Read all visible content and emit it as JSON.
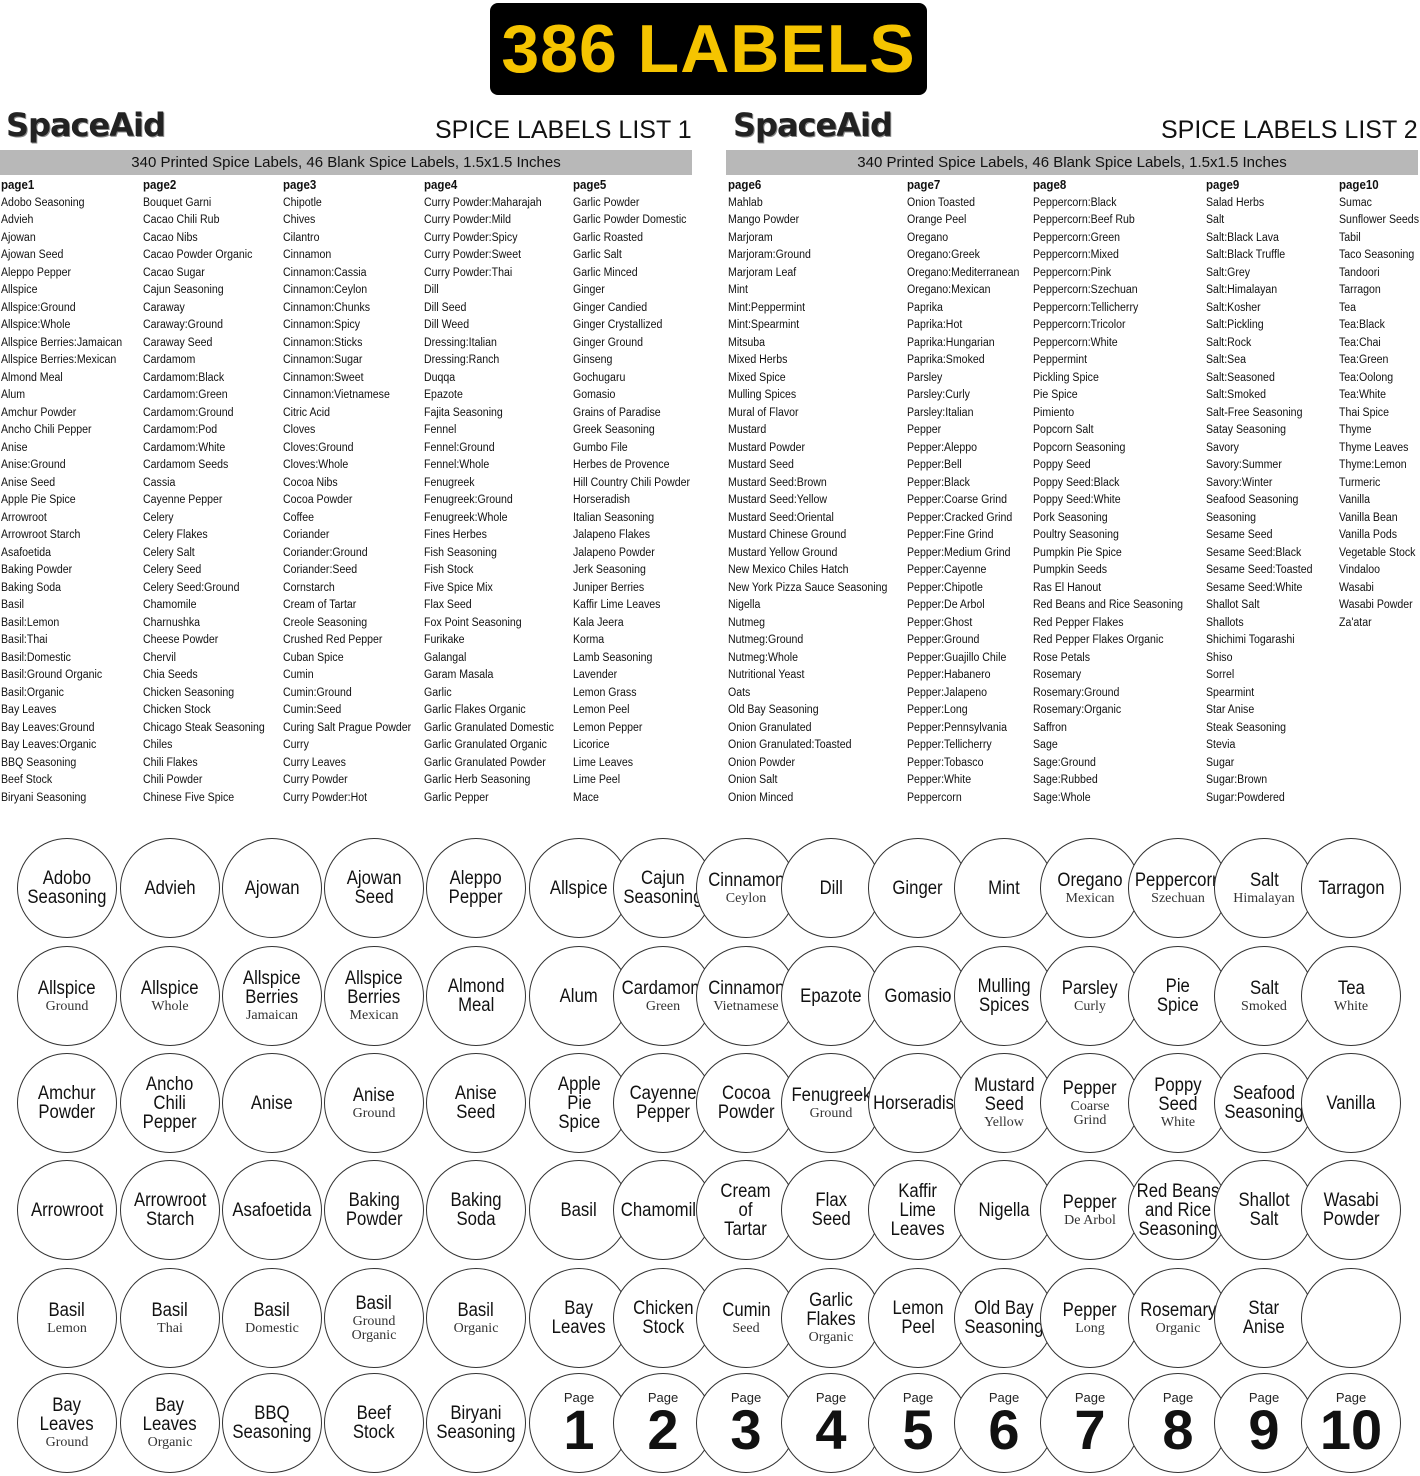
{
  "banner": "386 LABELS",
  "brand": "SpaceAid",
  "subtitle": "340 Printed Spice Labels, 46 Blank Spice Labels, 1.5x1.5 Inches",
  "list_titles": [
    "SPICE LABELS LIST 1",
    "SPICE LABELS LIST 2"
  ],
  "pages": [
    {
      "title": "page1",
      "items": [
        "Adobo Seasoning",
        "Advieh",
        "Ajowan",
        "Ajowan Seed",
        "Aleppo Pepper",
        "Allspice",
        "Allspice:Ground",
        "Allspice:Whole",
        "Allspice Berries:Jamaican",
        "Allspice Berries:Mexican",
        "Almond Meal",
        "Alum",
        "Amchur Powder",
        "Ancho Chili Pepper",
        "Anise",
        "Anise:Ground",
        "Anise Seed",
        "Apple Pie Spice",
        "Arrowroot",
        "Arrowroot Starch",
        "Asafoetida",
        "Baking Powder",
        "Baking Soda",
        "Basil",
        "Basil:Lemon",
        "Basil:Thai",
        "Basil:Domestic",
        "Basil:Ground Organic",
        "Basil:Organic",
        "Bay Leaves",
        "Bay Leaves:Ground",
        "Bay Leaves:Organic",
        "BBQ Seasoning",
        "Beef Stock",
        "Biryani Seasoning"
      ]
    },
    {
      "title": "page2",
      "items": [
        "Bouquet Garni",
        "Cacao Chili Rub",
        "Cacao Nibs",
        "Cacao Powder Organic",
        "Cacao Sugar",
        "Cajun Seasoning",
        "Caraway",
        "Caraway:Ground",
        "Caraway Seed",
        "Cardamom",
        "Cardamom:Black",
        "Cardamom:Green",
        "Cardamom:Ground",
        "Cardamom:Pod",
        "Cardamom:White",
        "Cardamom Seeds",
        "Cassia",
        "Cayenne Pepper",
        "Celery",
        "Celery Flakes",
        "Celery Salt",
        "Celery Seed",
        "Celery Seed:Ground",
        "Chamomile",
        "Charnushka",
        "Cheese Powder",
        "Chervil",
        "Chia Seeds",
        "Chicken Seasoning",
        "Chicken Stock",
        "Chicago Steak Seasoning",
        "Chiles",
        "Chili Flakes",
        "Chili Powder",
        "Chinese Five Spice"
      ]
    },
    {
      "title": "page3",
      "items": [
        "Chipotle",
        "Chives",
        "Cilantro",
        "Cinnamon",
        "Cinnamon:Cassia",
        "Cinnamon:Ceylon",
        "Cinnamon:Chunks",
        "Cinnamon:Spicy",
        "Cinnamon:Sticks",
        "Cinnamon:Sugar",
        "Cinnamon:Sweet",
        "Cinnamon:Vietnamese",
        "Citric Acid",
        "Cloves",
        "Cloves:Ground",
        "Cloves:Whole",
        "Cocoa Nibs",
        "Cocoa Powder",
        "Coffee",
        "Coriander",
        "Coriander:Ground",
        "Coriander:Seed",
        "Cornstarch",
        "Cream of Tartar",
        "Creole Seasoning",
        "Crushed Red Pepper",
        "Cuban Spice",
        "Cumin",
        "Cumin:Ground",
        "Cumin:Seed",
        "Curing Salt Prague Powder",
        "Curry",
        "Curry Leaves",
        "Curry Powder",
        "Curry Powder:Hot"
      ]
    },
    {
      "title": "page4",
      "items": [
        "Curry Powder:Maharajah",
        "Curry Powder:Mild",
        "Curry Powder:Spicy",
        "Curry Powder:Sweet",
        "Curry Powder:Thai",
        "Dill",
        "Dill Seed",
        "Dill Weed",
        "Dressing:Italian",
        "Dressing:Ranch",
        "Duqqa",
        "Epazote",
        "Fajita Seasoning",
        "Fennel",
        "Fennel:Ground",
        "Fennel:Whole",
        "Fenugreek",
        "Fenugreek:Ground",
        "Fenugreek:Whole",
        "Fines Herbes",
        "Fish Seasoning",
        "Fish Stock",
        "Five Spice Mix",
        "Flax Seed",
        "Fox Point Seasoning",
        "Furikake",
        "Galangal",
        "Garam Masala",
        "Garlic",
        "Garlic Flakes Organic",
        "Garlic Granulated Domestic",
        "Garlic Granulated Organic",
        "Garlic Granulated Powder",
        "Garlic Herb Seasoning",
        "Garlic Pepper"
      ]
    },
    {
      "title": "page5",
      "items": [
        "Garlic Powder",
        "Garlic Powder Domestic",
        "Garlic Roasted",
        "Garlic Salt",
        "Garlic Minced",
        "Ginger",
        "Ginger Candied",
        "Ginger Crystallized",
        "Ginger Ground",
        "Ginseng",
        "Gochugaru",
        "Gomasio",
        "Grains of Paradise",
        "Greek Seasoning",
        "Gumbo File",
        "Herbes de Provence",
        "Hill Country Chili Powder",
        "Horseradish",
        "Italian Seasoning",
        "Jalapeno Flakes",
        "Jalapeno Powder",
        "Jerk Seasoning",
        "Juniper Berries",
        "Kaffir Lime Leaves",
        "Kala Jeera",
        "Korma",
        "Lamb Seasoning",
        "Lavender",
        "Lemon Grass",
        "Lemon Peel",
        "Lemon Pepper",
        "Licorice",
        "Lime Leaves",
        "Lime Peel",
        "Mace"
      ]
    },
    {
      "title": "page6",
      "items": [
        "Mahlab",
        "Mango Powder",
        "Marjoram",
        "Marjoram:Ground",
        "Marjoram Leaf",
        "Mint",
        "Mint:Peppermint",
        "Mint:Spearmint",
        "Mitsuba",
        "Mixed Herbs",
        "Mixed Spice",
        "Mulling Spices",
        "Mural of Flavor",
        "Mustard",
        "Mustard Powder",
        "Mustard Seed",
        "Mustard Seed:Brown",
        "Mustard Seed:Yellow",
        "Mustard Seed:Oriental",
        "Mustard Chinese Ground",
        "Mustard Yellow Ground",
        "New Mexico Chiles Hatch",
        "New York Pizza Sauce Seasoning",
        "Nigella",
        "Nutmeg",
        "Nutmeg:Ground",
        "Nutmeg:Whole",
        "Nutritional Yeast",
        "Oats",
        "Old Bay Seasoning",
        "Onion Granulated",
        "Onion Granulated:Toasted",
        "Onion Powder",
        "Onion Salt",
        "Onion Minced"
      ]
    },
    {
      "title": "page7",
      "items": [
        "Onion Toasted",
        "Orange Peel",
        "Oregano",
        "Oregano:Greek",
        "Oregano:Mediterranean",
        "Oregano:Mexican",
        "Paprika",
        "Paprika:Hot",
        "Paprika:Hungarian",
        "Paprika:Smoked",
        "Parsley",
        "Parsley:Curly",
        "Parsley:Italian",
        "Pepper",
        "Pepper:Aleppo",
        "Pepper:Bell",
        "Pepper:Black",
        "Pepper:Coarse Grind",
        "Pepper:Cracked Grind",
        "Pepper:Fine Grind",
        "Pepper:Medium Grind",
        "Pepper:Cayenne",
        "Pepper:Chipotle",
        "Pepper:De Arbol",
        "Pepper:Ghost",
        "Pepper:Ground",
        "Pepper:Guajillo Chile",
        "Pepper:Habanero",
        "Pepper:Jalapeno",
        "Pepper:Long",
        "Pepper:Pennsylvania",
        "Pepper:Tellicherry",
        "Pepper:Tobasco",
        "Pepper:White",
        "Peppercorn"
      ]
    },
    {
      "title": "page8",
      "items": [
        "Peppercorn:Black",
        "Peppercorn:Beef Rub",
        "Peppercorn:Green",
        "Peppercorn:Mixed",
        "Peppercorn:Pink",
        "Peppercorn:Szechuan",
        "Peppercorn:Tellicherry",
        "Peppercorn:Tricolor",
        "Peppercorn:White",
        "Peppermint",
        "Pickling Spice",
        "Pie Spice",
        "Pimiento",
        "Popcorn Salt",
        "Popcorn Seasoning",
        "Poppy Seed",
        "Poppy Seed:Black",
        "Poppy Seed:White",
        "Pork Seasoning",
        "Poultry Seasoning",
        "Pumpkin Pie Spice",
        "Pumpkin Seeds",
        "Ras El Hanout",
        "Red Beans and Rice Seasoning",
        "Red Pepper Flakes",
        "Red Pepper Flakes Organic",
        "Rose Petals",
        "Rosemary",
        "Rosemary:Ground",
        "Rosemary:Organic",
        "Saffron",
        "Sage",
        "Sage:Ground",
        "Sage:Rubbed",
        "Sage:Whole"
      ]
    },
    {
      "title": "page9",
      "items": [
        "Salad Herbs",
        "Salt",
        "Salt:Black Lava",
        "Salt:Black Truffle",
        "Salt:Grey",
        "Salt:Himalayan",
        "Salt:Kosher",
        "Salt:Pickling",
        "Salt:Rock",
        "Salt:Sea",
        "Salt:Seasoned",
        "Salt:Smoked",
        "Salt-Free Seasoning",
        "Satay Seasoning",
        "Savory",
        "Savory:Summer",
        "Savory:Winter",
        "Seafood Seasoning",
        "Seasoning",
        "Sesame Seed",
        "Sesame Seed:Black",
        "Sesame Seed:Toasted",
        "Sesame Seed:White",
        "Shallot Salt",
        "Shallots",
        "Shichimi Togarashi",
        "Shiso",
        "Sorrel",
        "Spearmint",
        "Star Anise",
        "Steak Seasoning",
        "Stevia",
        "Sugar",
        "Sugar:Brown",
        "Sugar:Powdered"
      ]
    },
    {
      "title": "page10",
      "items": [
        "Sumac",
        "Sunflower Seeds",
        "Tabil",
        "Taco Seasoning",
        "Tandoori",
        "Tarragon",
        "Tea",
        "Tea:Black",
        "Tea:Chai",
        "Tea:Green",
        "Tea:Oolong",
        "Tea:White",
        "Thai Spice",
        "Thyme",
        "Thyme Leaves",
        "Thyme:Lemon",
        "Turmeric",
        "Vanilla",
        "Vanilla Bean",
        "Vanilla Pods",
        "Vegetable Stock",
        "Vindaloo",
        "Wasabi",
        "Wasabi Powder",
        "Za'atar"
      ]
    }
  ],
  "circles": [
    [
      {
        "m": "Adobo\nSeasoning"
      },
      {
        "m": "Advieh"
      },
      {
        "m": "Ajowan"
      },
      {
        "m": "Ajowan\nSeed"
      },
      {
        "m": "Aleppo\nPepper"
      },
      {
        "m": "Allspice"
      },
      {
        "m": "Cajun\nSeasoning"
      },
      {
        "m": "Cinnamon",
        "s": "Ceylon"
      },
      {
        "m": "Dill"
      },
      {
        "m": "Ginger"
      },
      {
        "m": "Mint"
      },
      {
        "m": "Oregano",
        "s": "Mexican"
      },
      {
        "m": "Peppercorn",
        "s": "Szechuan"
      },
      {
        "m": "Salt",
        "s": "Himalayan"
      },
      {
        "m": "Tarragon"
      }
    ],
    [
      {
        "m": "Allspice",
        "s": "Ground"
      },
      {
        "m": "Allspice",
        "s": "Whole"
      },
      {
        "m": "Allspice\nBerries",
        "s": "Jamaican"
      },
      {
        "m": "Allspice\nBerries",
        "s": "Mexican"
      },
      {
        "m": "Almond\nMeal"
      },
      {
        "m": "Alum"
      },
      {
        "m": "Cardamom",
        "s": "Green"
      },
      {
        "m": "Cinnamon",
        "s": "Vietnamese"
      },
      {
        "m": "Epazote"
      },
      {
        "m": "Gomasio"
      },
      {
        "m": "Mulling\nSpices"
      },
      {
        "m": "Parsley",
        "s": "Curly"
      },
      {
        "m": "Pie\nSpice"
      },
      {
        "m": "Salt",
        "s": "Smoked"
      },
      {
        "m": "Tea",
        "s": "White"
      }
    ],
    [
      {
        "m": "Amchur\nPowder"
      },
      {
        "m": "Ancho\nChili\nPepper"
      },
      {
        "m": "Anise"
      },
      {
        "m": "Anise",
        "s": "Ground"
      },
      {
        "m": "Anise\nSeed"
      },
      {
        "m": "Apple\nPie\nSpice"
      },
      {
        "m": "Cayenne\nPepper"
      },
      {
        "m": "Cocoa\nPowder"
      },
      {
        "m": "Fenugreek",
        "s": "Ground"
      },
      {
        "m": "Horseradish"
      },
      {
        "m": "Mustard\nSeed",
        "s": "Yellow"
      },
      {
        "m": "Pepper",
        "s": "Coarse\nGrind"
      },
      {
        "m": "Poppy\nSeed",
        "s": "White"
      },
      {
        "m": "Seafood\nSeasoning"
      },
      {
        "m": "Vanilla"
      }
    ],
    [
      {
        "m": "Arrowroot"
      },
      {
        "m": "Arrowroot\nStarch"
      },
      {
        "m": "Asafoetida"
      },
      {
        "m": "Baking\nPowder"
      },
      {
        "m": "Baking\nSoda"
      },
      {
        "m": "Basil"
      },
      {
        "m": "Chamomile"
      },
      {
        "m": "Cream\nof\nTartar"
      },
      {
        "m": "Flax\nSeed"
      },
      {
        "m": "Kaffir\nLime\nLeaves"
      },
      {
        "m": "Nigella"
      },
      {
        "m": "Pepper",
        "s": "De Arbol"
      },
      {
        "m": "Red Beans\nand Rice\nSeasoning"
      },
      {
        "m": "Shallot\nSalt"
      },
      {
        "m": "Wasabi\nPowder"
      }
    ],
    [
      {
        "m": "Basil",
        "s": "Lemon"
      },
      {
        "m": "Basil",
        "s": "Thai"
      },
      {
        "m": "Basil",
        "s": "Domestic"
      },
      {
        "m": "Basil",
        "s": "Ground\nOrganic"
      },
      {
        "m": "Basil",
        "s": "Organic"
      },
      {
        "m": "Bay\nLeaves"
      },
      {
        "m": "Chicken\nStock"
      },
      {
        "m": "Cumin",
        "s": "Seed"
      },
      {
        "m": "Garlic\nFlakes",
        "s": "Organic"
      },
      {
        "m": "Lemon\nPeel"
      },
      {
        "m": "Old Bay\nSeasoning"
      },
      {
        "m": "Pepper",
        "s": "Long"
      },
      {
        "m": "Rosemary",
        "s": "Organic"
      },
      {
        "m": "Star\nAnise"
      },
      {
        "m": ""
      }
    ],
    [
      {
        "m": "Bay\nLeaves",
        "s": "Ground"
      },
      {
        "m": "Bay\nLeaves",
        "s": "Organic"
      },
      {
        "m": "BBQ\nSeasoning"
      },
      {
        "m": "Beef\nStock"
      },
      {
        "m": "Biryani\nSeasoning"
      },
      {
        "p": "Page",
        "n": "1"
      },
      {
        "p": "Page",
        "n": "2"
      },
      {
        "p": "Page",
        "n": "3"
      },
      {
        "p": "Page",
        "n": "4"
      },
      {
        "p": "Page",
        "n": "5"
      },
      {
        "p": "Page",
        "n": "6"
      },
      {
        "p": "Page",
        "n": "7"
      },
      {
        "p": "Page",
        "n": "8"
      },
      {
        "p": "Page",
        "n": "9"
      },
      {
        "p": "Page",
        "n": "10"
      }
    ]
  ],
  "colors": {
    "banner_bg": "#000000",
    "banner_text": "#f5c400",
    "bar_bg": "#b8b8b8"
  }
}
